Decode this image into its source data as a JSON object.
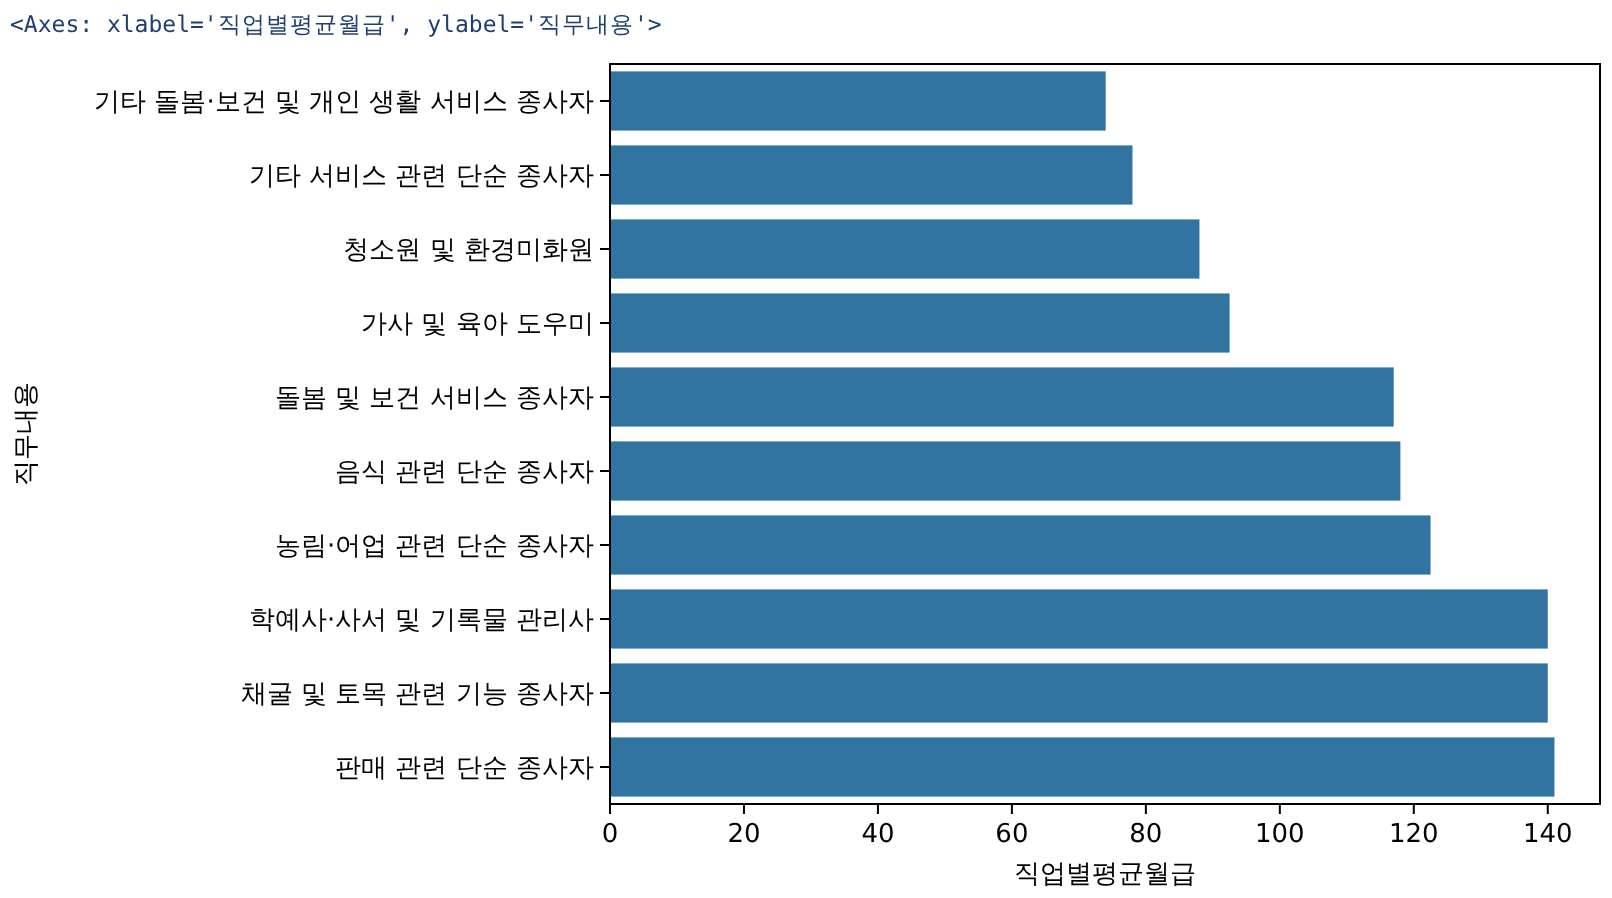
{
  "chart_data": {
    "type": "bar",
    "orientation": "horizontal",
    "categories": [
      "기타 돌봄·보건 및 개인 생활 서비스 종사자",
      "기타 서비스 관련 단순 종사자",
      "청소원 및 환경미화원",
      "가사 및 육아 도우미",
      "돌봄 및 보건 서비스 종사자",
      "음식 관련 단순 종사자",
      "농림·어업 관련 단순 종사자",
      "학예사·사서 및 기록물 관리사",
      "채굴 및 토목 관련 기능 종사자",
      "판매 관련 단순 종사자"
    ],
    "values": [
      74,
      78,
      88,
      92.5,
      117,
      118,
      122.5,
      140,
      140,
      141
    ],
    "color": "#3274a1",
    "xlim": [
      0,
      147.8
    ],
    "xticks": [
      0,
      20,
      40,
      60,
      80,
      100,
      120,
      140
    ],
    "xlabel": "직업별평균월급",
    "ylabel": "직무내용",
    "annotations": [
      "<Axes: xlabel='직업별평균월급', ylabel='직무내용'>"
    ]
  }
}
